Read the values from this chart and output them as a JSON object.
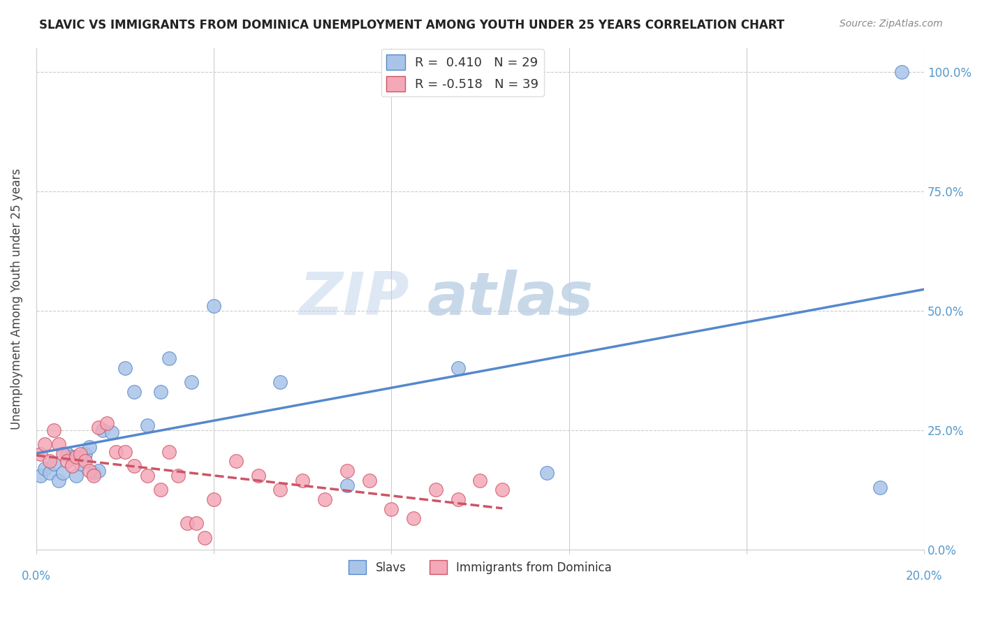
{
  "title": "SLAVIC VS IMMIGRANTS FROM DOMINICA UNEMPLOYMENT AMONG YOUTH UNDER 25 YEARS CORRELATION CHART",
  "source": "Source: ZipAtlas.com",
  "ylabel": "Unemployment Among Youth under 25 years",
  "xlim": [
    0.0,
    0.2
  ],
  "ylim": [
    0.0,
    1.05
  ],
  "yticks": [
    0.0,
    0.25,
    0.5,
    0.75,
    1.0
  ],
  "ytick_labels": [
    "0.0%",
    "25.0%",
    "50.0%",
    "75.0%",
    "100.0%"
  ],
  "r_slavs": 0.41,
  "n_slavs": 29,
  "r_dominica": -0.518,
  "n_dominica": 39,
  "slavs_color": "#aac4e8",
  "dominica_color": "#f4a8b8",
  "slavs_line_color": "#5588cc",
  "dominica_line_color": "#cc5566",
  "watermark_zip": "ZIP",
  "watermark_atlas": "atlas",
  "slavs_x": [
    0.001,
    0.002,
    0.003,
    0.004,
    0.005,
    0.006,
    0.007,
    0.008,
    0.009,
    0.01,
    0.011,
    0.012,
    0.013,
    0.014,
    0.015,
    0.017,
    0.02,
    0.022,
    0.025,
    0.028,
    0.03,
    0.035,
    0.04,
    0.055,
    0.07,
    0.095,
    0.115,
    0.19,
    0.195
  ],
  "slavs_y": [
    0.155,
    0.17,
    0.16,
    0.18,
    0.145,
    0.16,
    0.2,
    0.195,
    0.155,
    0.18,
    0.2,
    0.215,
    0.16,
    0.165,
    0.25,
    0.245,
    0.38,
    0.33,
    0.26,
    0.33,
    0.4,
    0.35,
    0.51,
    0.35,
    0.135,
    0.38,
    0.16,
    0.13,
    1.0
  ],
  "dominica_x": [
    0.001,
    0.002,
    0.003,
    0.004,
    0.005,
    0.006,
    0.007,
    0.008,
    0.009,
    0.01,
    0.011,
    0.012,
    0.013,
    0.014,
    0.016,
    0.018,
    0.02,
    0.022,
    0.025,
    0.028,
    0.03,
    0.032,
    0.034,
    0.036,
    0.038,
    0.04,
    0.045,
    0.05,
    0.055,
    0.06,
    0.065,
    0.07,
    0.075,
    0.08,
    0.085,
    0.09,
    0.095,
    0.1,
    0.105
  ],
  "dominica_y": [
    0.2,
    0.22,
    0.185,
    0.25,
    0.22,
    0.2,
    0.185,
    0.175,
    0.195,
    0.2,
    0.185,
    0.165,
    0.155,
    0.255,
    0.265,
    0.205,
    0.205,
    0.175,
    0.155,
    0.125,
    0.205,
    0.155,
    0.055,
    0.055,
    0.025,
    0.105,
    0.185,
    0.155,
    0.125,
    0.145,
    0.105,
    0.165,
    0.145,
    0.085,
    0.065,
    0.125,
    0.105,
    0.145,
    0.125
  ]
}
